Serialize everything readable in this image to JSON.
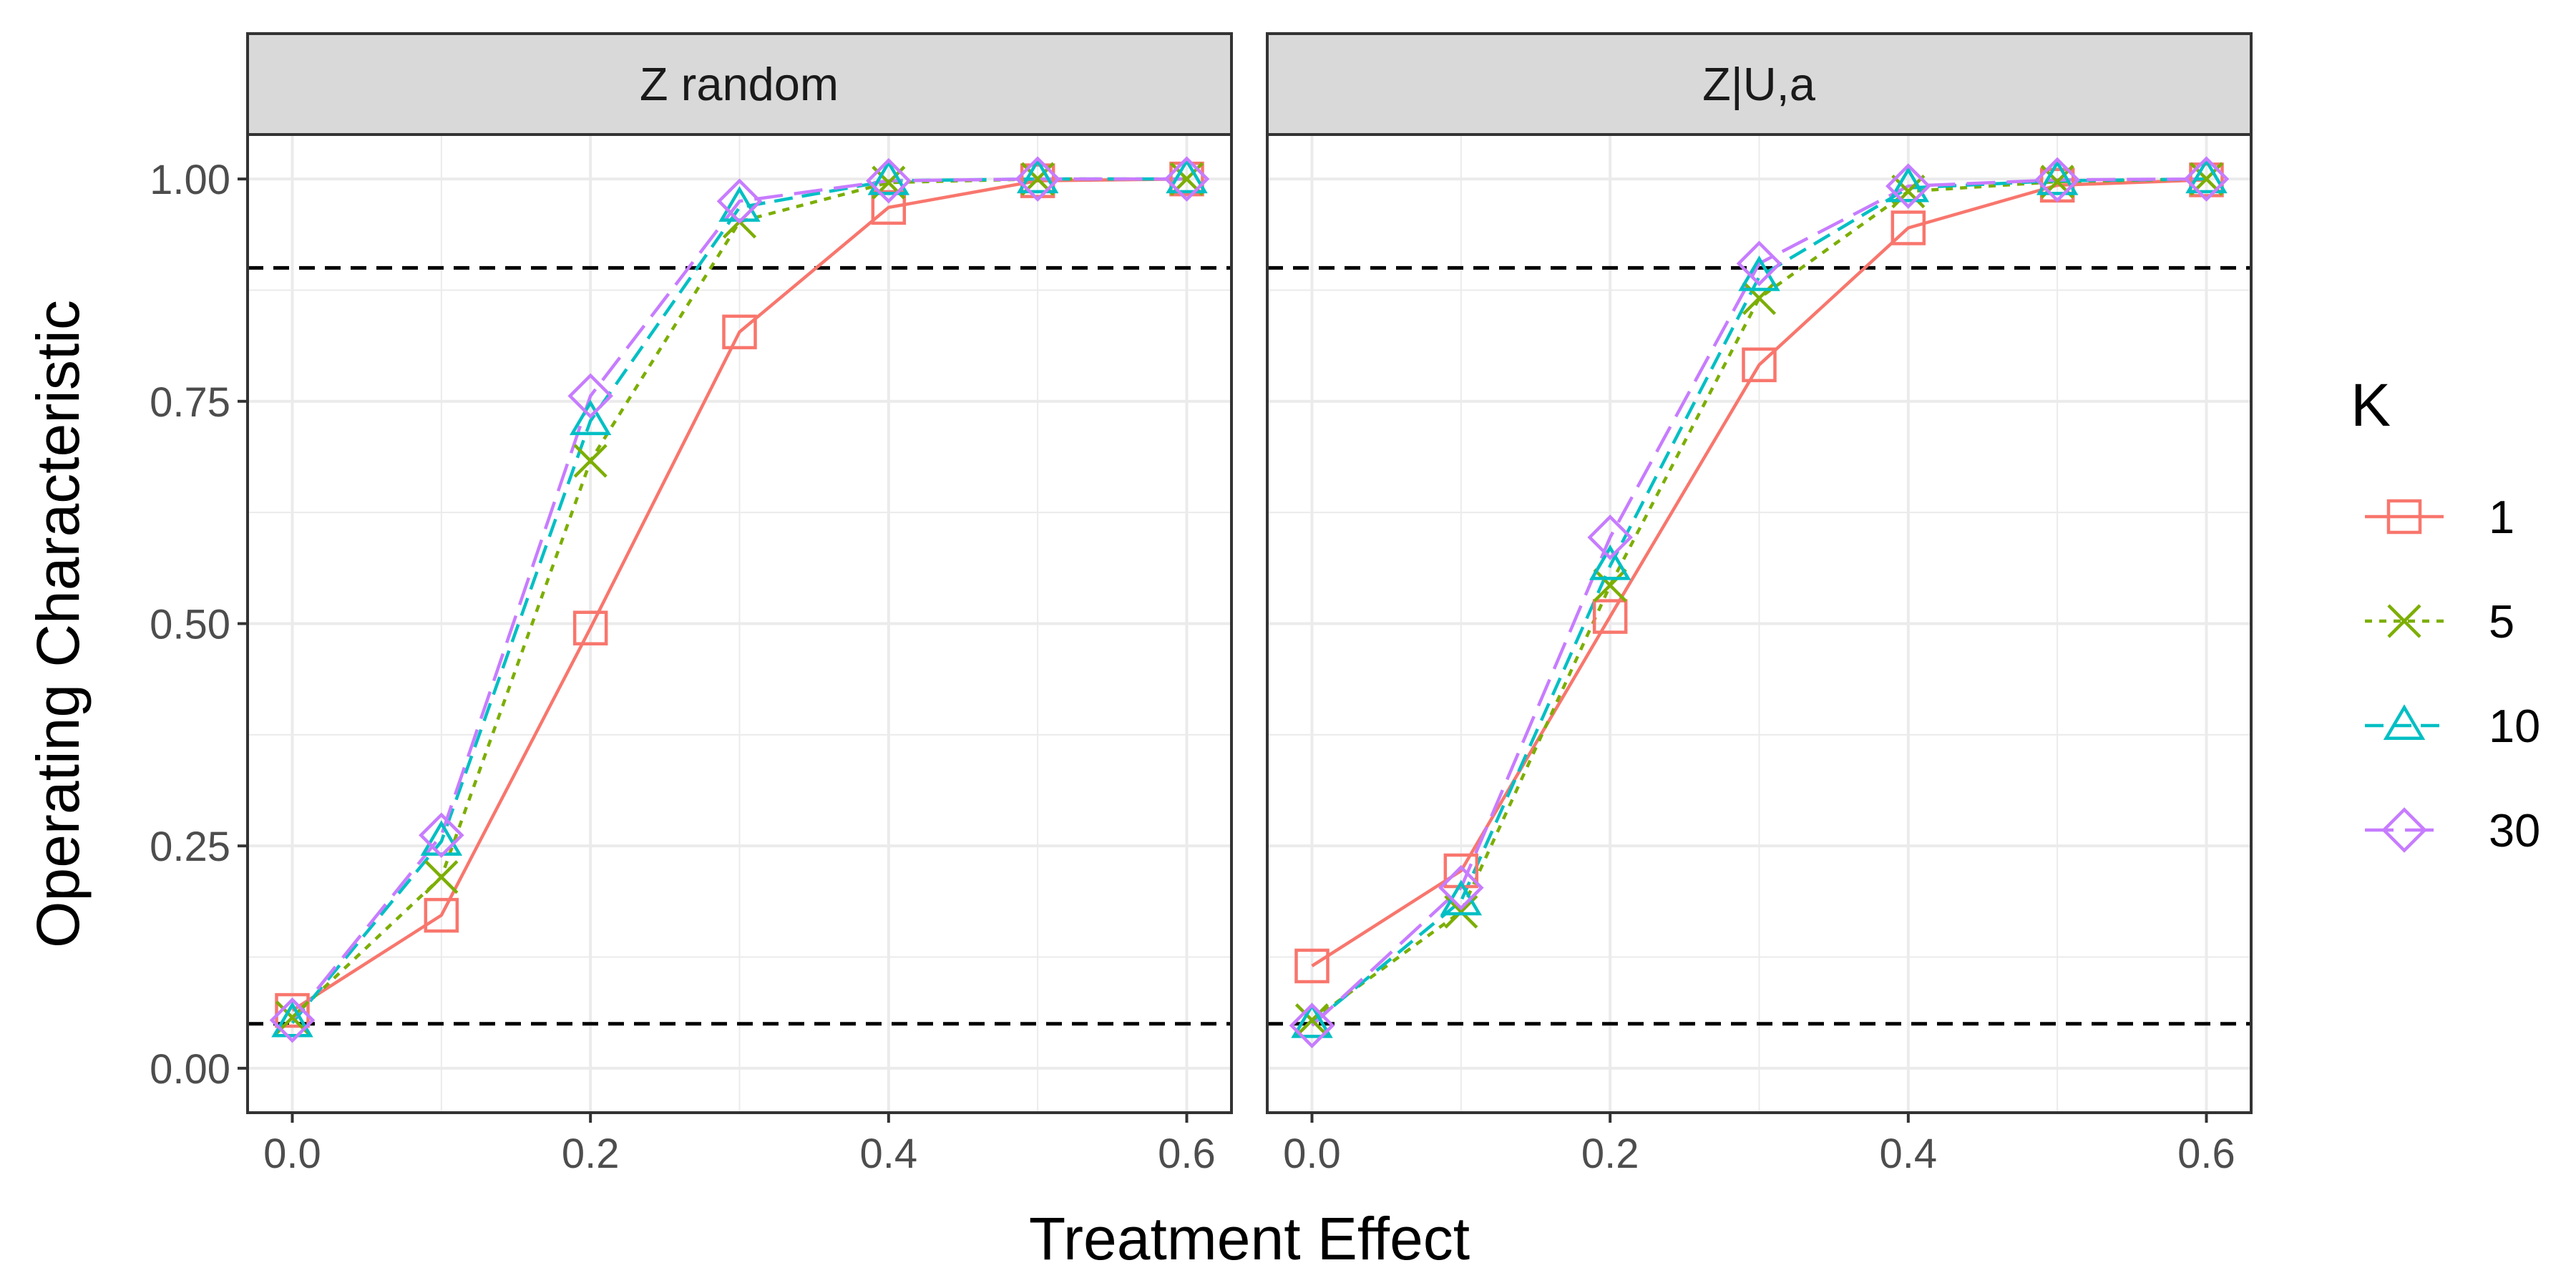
{
  "chart_data": [
    {
      "type": "line",
      "panel_title": "Z random",
      "x": [
        0.0,
        0.1,
        0.2,
        0.3,
        0.4,
        0.5,
        0.6
      ],
      "series": [
        {
          "name": "1",
          "values": [
            0.065,
            0.172,
            0.495,
            0.828,
            0.968,
            0.998,
            1.0
          ]
        },
        {
          "name": "5",
          "values": [
            0.057,
            0.215,
            0.683,
            0.952,
            0.996,
            1.0,
            1.0
          ]
        },
        {
          "name": "10",
          "values": [
            0.051,
            0.255,
            0.728,
            0.968,
            0.998,
            1.0,
            1.0
          ]
        },
        {
          "name": "30",
          "values": [
            0.054,
            0.262,
            0.756,
            0.975,
            0.998,
            1.0,
            1.0
          ]
        }
      ],
      "hlines": [
        0.05,
        0.9
      ],
      "xlim": [
        -0.03,
        0.63
      ],
      "ylim": [
        -0.05,
        1.05
      ]
    },
    {
      "type": "line",
      "panel_title": "Z|U,a",
      "x": [
        0.0,
        0.1,
        0.2,
        0.3,
        0.4,
        0.5,
        0.6
      ],
      "series": [
        {
          "name": "1",
          "values": [
            0.115,
            0.222,
            0.508,
            0.791,
            0.945,
            0.993,
            0.999
          ]
        },
        {
          "name": "5",
          "values": [
            0.054,
            0.176,
            0.543,
            0.866,
            0.986,
            0.997,
            1.0
          ]
        },
        {
          "name": "10",
          "values": [
            0.05,
            0.188,
            0.565,
            0.89,
            0.99,
            0.998,
            1.0
          ]
        },
        {
          "name": "30",
          "values": [
            0.048,
            0.203,
            0.597,
            0.905,
            0.992,
            0.999,
            1.0
          ]
        }
      ],
      "hlines": [
        0.05,
        0.9
      ],
      "xlim": [
        -0.03,
        0.63
      ],
      "ylim": [
        -0.05,
        1.05
      ]
    }
  ],
  "axes": {
    "xlabel": "Treatment Effect",
    "ylabel": "Operating Characteristic",
    "xticks": [
      "0.0",
      "0.2",
      "0.4",
      "0.6"
    ],
    "yticks": [
      "0.00",
      "0.25",
      "0.50",
      "0.75",
      "1.00"
    ]
  },
  "legend": {
    "title": "K",
    "placement": "right",
    "entries": [
      {
        "label": "1",
        "color": "#F8766D",
        "shape": "open-square",
        "line": "solid"
      },
      {
        "label": "5",
        "color": "#7CAE00",
        "shape": "x-cross",
        "line": "dotted"
      },
      {
        "label": "10",
        "color": "#00BFC4",
        "shape": "open-triangle",
        "line": "dashed"
      },
      {
        "label": "30",
        "color": "#C77CFF",
        "shape": "open-diamond",
        "line": "long-dashed"
      }
    ]
  },
  "grid": true,
  "panel_border": true
}
